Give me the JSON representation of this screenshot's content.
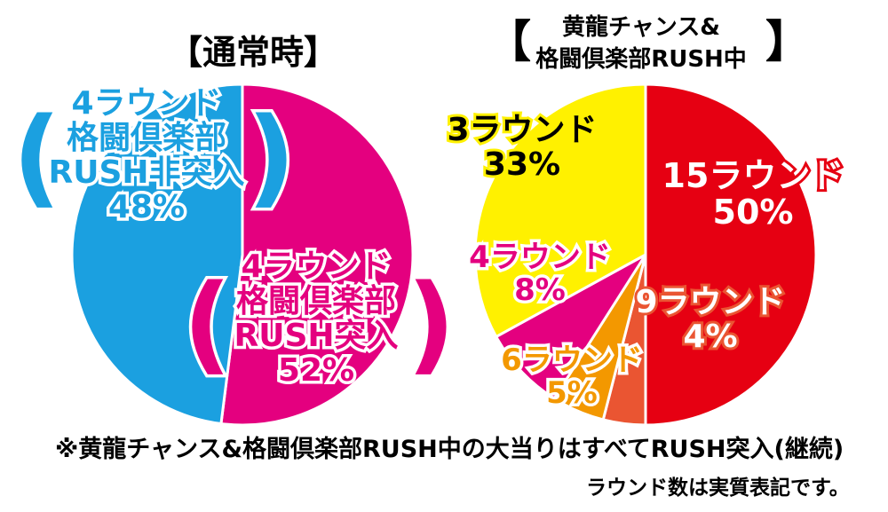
{
  "titles": {
    "left": "【通常時】",
    "right_line1": "黄龍チャンス&",
    "right_line2": "格闘倶楽部RUSH中",
    "right_bracket_open": "【",
    "right_bracket_close": "】"
  },
  "left_labels": {
    "blue": {
      "line1": "4ラウンド",
      "line2": "格闘倶楽部",
      "line3": "RUSH非突入",
      "line4": "48%"
    },
    "pink": {
      "line1": "4ラウンド",
      "line2": "格闘倶楽部",
      "line3": "RUSH突入",
      "line4": "52%"
    },
    "paren_open": "(",
    "paren_close": ")"
  },
  "right_labels": {
    "yellow": {
      "line1": "3ラウンド",
      "line2": "33%"
    },
    "red": {
      "line1": "15ラウンド",
      "line2": "50%"
    },
    "magenta": {
      "line1": "4ラウンド",
      "line2": "8%"
    },
    "orange_dark": {
      "line1": "9ラウンド",
      "line2": "4%"
    },
    "orange": {
      "line1": "6ラウンド",
      "line2": "5%"
    }
  },
  "notes": {
    "line1": "※黄龍チャンス&格闘倶楽部RUSH中の大当りはすべてRUSH突入(継続)",
    "line2": "ラウンド数は実質表記です。"
  },
  "chart_data": [
    {
      "type": "pie",
      "title": "【通常時】",
      "slices": [
        {
          "label": "4ラウンド(格闘倶楽部RUSH突入)",
          "value": 52,
          "color": "#e4007f"
        },
        {
          "label": "4ラウンド(格闘倶楽部RUSH非突入)",
          "value": 48,
          "color": "#1ba0e0"
        }
      ]
    },
    {
      "type": "pie",
      "title": "【黄龍チャンス&格闘倶楽部RUSH中】",
      "slices": [
        {
          "label": "15ラウンド",
          "value": 50,
          "color": "#e60012"
        },
        {
          "label": "9ラウンド",
          "value": 4,
          "color": "#ea5532"
        },
        {
          "label": "6ラウンド",
          "value": 5,
          "color": "#f39800"
        },
        {
          "label": "4ラウンド",
          "value": 8,
          "color": "#e4007f"
        },
        {
          "label": "3ラウンド",
          "value": 33,
          "color": "#fff100"
        }
      ]
    }
  ]
}
